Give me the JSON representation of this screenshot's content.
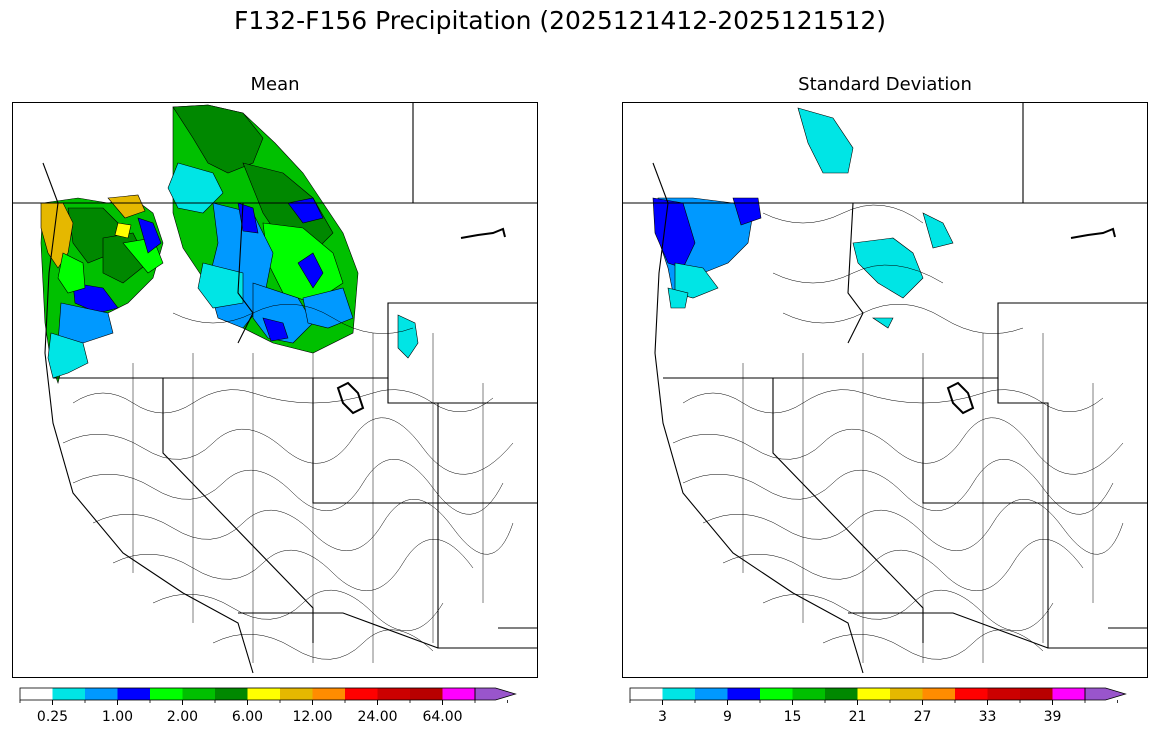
{
  "title": "F132-F156 Precipitation (2025121412-2025121512)",
  "panels": [
    {
      "id": "mean",
      "subtitle": "Mean",
      "colorbar": {
        "colors": [
          "#ffffff",
          "#00e5e5",
          "#0099ff",
          "#0000ff",
          "#00ff00",
          "#00c000",
          "#008800",
          "#ffff00",
          "#e5b800",
          "#ff8c00",
          "#ff0000",
          "#cc0000",
          "#b80000",
          "#ff00ff",
          "#9955cc"
        ],
        "tick_labels": [
          "0.25",
          "1.00",
          "2.00",
          "6.00",
          "12.00",
          "24.00",
          "64.00"
        ]
      }
    },
    {
      "id": "stddev",
      "subtitle": "Standard Deviation",
      "colorbar": {
        "colors": [
          "#ffffff",
          "#00e5e5",
          "#0099ff",
          "#0000ff",
          "#00ff00",
          "#00c000",
          "#008800",
          "#ffff00",
          "#e5b800",
          "#ff8c00",
          "#ff0000",
          "#cc0000",
          "#b80000",
          "#ff00ff",
          "#9955cc"
        ],
        "tick_labels": [
          "3",
          "9",
          "15",
          "21",
          "27",
          "33",
          "39"
        ]
      }
    }
  ]
}
